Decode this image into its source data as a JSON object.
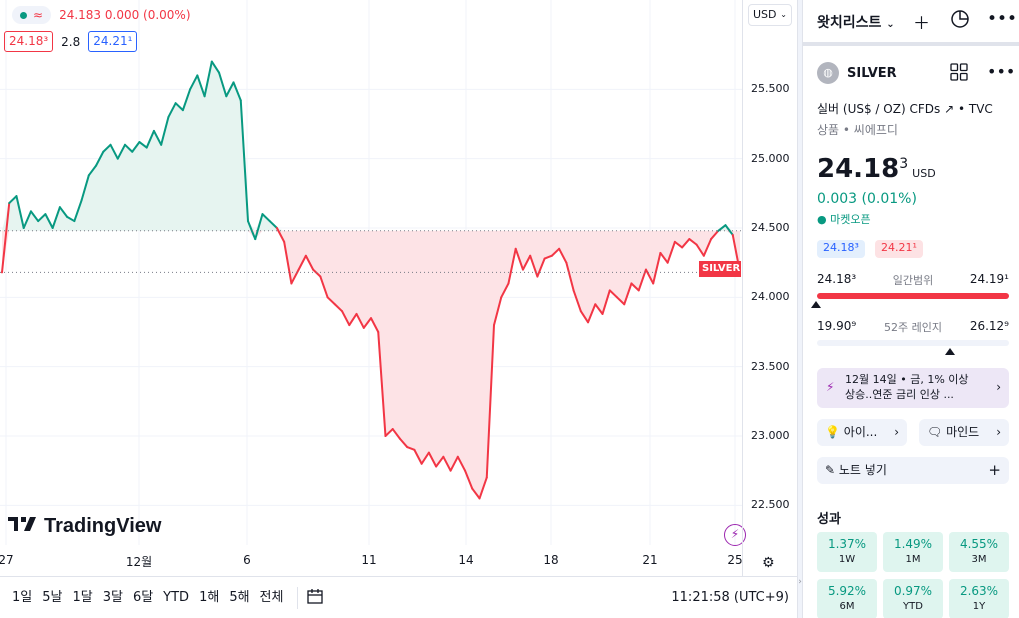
{
  "chart_header": {
    "legend_wave": "≈",
    "legend_price": "24.183 0.000 (0.00%)",
    "bid": "24.18³",
    "spread": "2.8",
    "ask": "24.21¹",
    "currency": "USD",
    "price_flag": "SILVER",
    "brand": "TradingView"
  },
  "chart_data": {
    "type": "area",
    "ylim": [
      22.25,
      26.0
    ],
    "yticks": [
      "25.500",
      "25.000",
      "24.500",
      "24.000",
      "23.500",
      "23.000",
      "22.500"
    ],
    "ytick_values": [
      25.5,
      25.0,
      24.5,
      24.0,
      23.5,
      23.0,
      22.5
    ],
    "xticks": [
      "27",
      "12월",
      "6",
      "11",
      "14",
      "18",
      "21",
      "25"
    ],
    "reference_price": 24.48,
    "last_price": 24.18,
    "colors": {
      "up": "#089981",
      "down": "#f23645",
      "up_fill": "#e6f4f0",
      "down_fill": "#fde3e6"
    },
    "values": [
      24.18,
      24.68,
      24.73,
      24.5,
      24.62,
      24.55,
      24.6,
      24.5,
      24.65,
      24.58,
      24.55,
      24.7,
      24.88,
      24.95,
      25.05,
      25.1,
      25.0,
      25.1,
      25.05,
      25.12,
      25.08,
      25.2,
      25.1,
      25.3,
      25.4,
      25.35,
      25.5,
      25.6,
      25.45,
      25.7,
      25.62,
      25.45,
      25.55,
      25.42,
      24.55,
      24.42,
      24.6,
      24.55,
      24.5,
      24.4,
      24.1,
      24.2,
      24.3,
      24.2,
      24.15,
      24.0,
      23.95,
      23.9,
      23.8,
      23.88,
      23.78,
      23.85,
      23.75,
      23.0,
      23.05,
      22.98,
      22.92,
      22.9,
      22.8,
      22.88,
      22.78,
      22.85,
      22.75,
      22.85,
      22.75,
      22.62,
      22.55,
      22.7,
      23.8,
      24.0,
      24.1,
      24.35,
      24.2,
      24.3,
      24.15,
      24.28,
      24.3,
      24.35,
      24.25,
      24.05,
      23.9,
      23.82,
      23.95,
      23.88,
      24.05,
      24.0,
      23.95,
      24.1,
      24.05,
      24.2,
      24.1,
      24.32,
      24.25,
      24.4,
      24.36,
      24.42,
      24.38,
      24.3,
      24.42,
      24.48,
      24.52,
      24.45,
      24.18
    ]
  },
  "bottom_bar": {
    "ranges": [
      "1일",
      "5날",
      "1달",
      "3달",
      "6달",
      "YTD",
      "1해",
      "5해",
      "전체"
    ],
    "clock": "11:21:58 (UTC+9)"
  },
  "right_panel": {
    "watchlist_title": "왓치리스트",
    "symbol": "SILVER",
    "description": "실버 (US$ / OZ) CFDs",
    "exchange": "TVC",
    "category": "상품 • 씨에프디",
    "price_main": "24.18",
    "price_sup": "3",
    "price_unit": "USD",
    "change": "0.003 (0.01%)",
    "market_status": "● 마켓오픈",
    "bid_mini": "24.18³",
    "ask_mini": "24.21¹",
    "day_low": "24.18³",
    "day_label": "일간범위",
    "day_high": "24.19¹",
    "year_low": "19.90⁹",
    "year_label": "52주 레인지",
    "year_high": "26.12⁹",
    "news_line1": "12월 14일 • 금, 1% 이상",
    "news_line2": "상승..연준 금리 인상 ...",
    "ideas_label": "아이...",
    "minds_label": "마인드",
    "note_label": "노트 넣기",
    "performance_title": "성과",
    "performance": [
      {
        "value": "1.37%",
        "label": "1W"
      },
      {
        "value": "1.49%",
        "label": "1M"
      },
      {
        "value": "4.55%",
        "label": "3M"
      },
      {
        "value": "5.92%",
        "label": "6M"
      },
      {
        "value": "0.97%",
        "label": "YTD"
      },
      {
        "value": "2.63%",
        "label": "1Y"
      }
    ]
  }
}
